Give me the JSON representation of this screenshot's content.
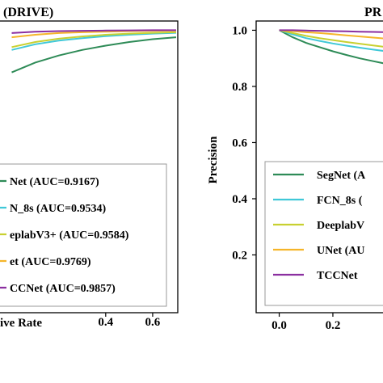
{
  "chart_data": [
    {
      "type": "line",
      "panel": "left",
      "title": "(DRIVE)",
      "xlabel": "ive Rate",
      "ylabel": "",
      "xlim": [
        -0.05,
        0.7
      ],
      "ylim": [
        0.0,
        1.03
      ],
      "x_ticks": [
        "0.4",
        "0.6"
      ],
      "x_tick_values": [
        0.4,
        0.6
      ],
      "legend_position": "bottom-right",
      "series": [
        {
          "name": "Net (AUC=0.9167)",
          "color": "#2e8b57",
          "x": [
            0.0,
            0.1,
            0.2,
            0.3,
            0.4,
            0.5,
            0.6,
            0.7
          ],
          "y": [
            0.85,
            0.885,
            0.91,
            0.93,
            0.945,
            0.958,
            0.968,
            0.975
          ]
        },
        {
          "name": "N_8s (AUC=0.9534)",
          "color": "#40c8d8",
          "x": [
            0.0,
            0.1,
            0.2,
            0.3,
            0.4,
            0.5,
            0.6,
            0.7
          ],
          "y": [
            0.93,
            0.95,
            0.963,
            0.972,
            0.979,
            0.984,
            0.988,
            0.991
          ]
        },
        {
          "name": "eplabV3+ (AUC=0.9584)",
          "color": "#c8d030",
          "x": [
            0.0,
            0.1,
            0.2,
            0.3,
            0.4,
            0.5,
            0.6,
            0.7
          ],
          "y": [
            0.94,
            0.958,
            0.97,
            0.978,
            0.984,
            0.988,
            0.991,
            0.993
          ]
        },
        {
          "name": "et (AUC=0.9769)",
          "color": "#f5b52a",
          "x": [
            0.0,
            0.1,
            0.2,
            0.3,
            0.4,
            0.5,
            0.6,
            0.7
          ],
          "y": [
            0.975,
            0.984,
            0.99,
            0.993,
            0.995,
            0.997,
            0.998,
            0.999
          ]
        },
        {
          "name": "CCNet (AUC=0.9857)",
          "color": "#8b2fa0",
          "x": [
            0.0,
            0.1,
            0.2,
            0.3,
            0.4,
            0.5,
            0.6,
            0.7
          ],
          "y": [
            0.99,
            0.995,
            0.997,
            0.998,
            0.999,
            0.9995,
            1.0,
            1.0
          ]
        }
      ]
    },
    {
      "type": "line",
      "panel": "right",
      "title": "PR",
      "xlabel": "",
      "ylabel": "Precision",
      "xlim": [
        -0.08,
        0.42
      ],
      "ylim": [
        0.0,
        1.03
      ],
      "x_ticks": [
        "0.0",
        "0.2"
      ],
      "x_tick_values": [
        0.0,
        0.2
      ],
      "y_ticks": [
        "0.2",
        "0.4",
        "0.6",
        "0.8",
        "1.0"
      ],
      "y_tick_values": [
        0.2,
        0.4,
        0.6,
        0.8,
        1.0
      ],
      "legend_position": "bottom-right",
      "series": [
        {
          "name": "SegNet (A",
          "color": "#2e8b57",
          "x": [
            0.0,
            0.05,
            0.1,
            0.15,
            0.2,
            0.25,
            0.3,
            0.35,
            0.4
          ],
          "y": [
            1.0,
            0.975,
            0.955,
            0.94,
            0.925,
            0.912,
            0.9,
            0.89,
            0.88
          ]
        },
        {
          "name": "FCN_8s (",
          "color": "#40c8d8",
          "x": [
            0.0,
            0.05,
            0.1,
            0.15,
            0.2,
            0.25,
            0.3,
            0.35,
            0.4
          ],
          "y": [
            1.0,
            0.985,
            0.972,
            0.962,
            0.953,
            0.945,
            0.938,
            0.931,
            0.925
          ]
        },
        {
          "name": "DeeplabV",
          "color": "#c8d030",
          "x": [
            0.0,
            0.05,
            0.1,
            0.15,
            0.2,
            0.25,
            0.3,
            0.35,
            0.4
          ],
          "y": [
            1.0,
            0.99,
            0.98,
            0.972,
            0.965,
            0.958,
            0.952,
            0.946,
            0.94
          ]
        },
        {
          "name": "UNet (AU",
          "color": "#f5b52a",
          "x": [
            0.0,
            0.05,
            0.1,
            0.15,
            0.2,
            0.25,
            0.3,
            0.35,
            0.4
          ],
          "y": [
            1.0,
            0.997,
            0.993,
            0.99,
            0.986,
            0.982,
            0.978,
            0.974,
            0.97
          ]
        },
        {
          "name": "TCCNet",
          "color": "#8b2fa0",
          "x": [
            0.0,
            0.05,
            0.1,
            0.15,
            0.2,
            0.25,
            0.3,
            0.35,
            0.4
          ],
          "y": [
            1.0,
            1.0,
            0.999,
            0.998,
            0.997,
            0.996,
            0.995,
            0.994,
            0.993
          ]
        }
      ]
    }
  ]
}
